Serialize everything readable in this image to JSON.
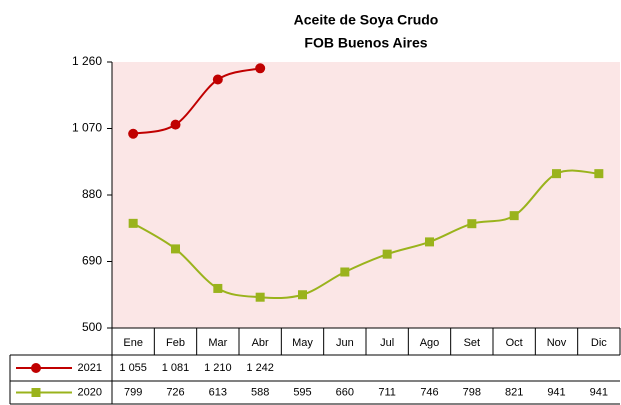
{
  "chart_data": {
    "type": "line",
    "title": "Aceite de Soya Crudo",
    "subtitle": "FOB Buenos Aires",
    "categories": [
      "Ene",
      "Feb",
      "Mar",
      "Abr",
      "May",
      "Jun",
      "Jul",
      "Ago",
      "Set",
      "Oct",
      "Nov",
      "Dic"
    ],
    "series": [
      {
        "name": "2021",
        "color": "#c00000",
        "marker": "circle",
        "values": [
          1055,
          1081,
          1210,
          1242,
          null,
          null,
          null,
          null,
          null,
          null,
          null,
          null
        ],
        "value_labels": [
          "1 055",
          "1 081",
          "1 210",
          "1 242",
          null,
          null,
          null,
          null,
          null,
          null,
          null,
          null
        ]
      },
      {
        "name": "2020",
        "color": "#9ab31c",
        "marker": "square",
        "values": [
          799,
          726,
          613,
          588,
          595,
          660,
          711,
          746,
          798,
          821,
          941,
          941
        ]
      }
    ],
    "ylim": [
      500,
      1260
    ],
    "yticks": [
      500,
      690,
      880,
      {
        "value": 1070,
        "label": "1 070"
      },
      {
        "value": 1260,
        "label": "1 260"
      }
    ],
    "plot_background": "#fbe6e6"
  }
}
